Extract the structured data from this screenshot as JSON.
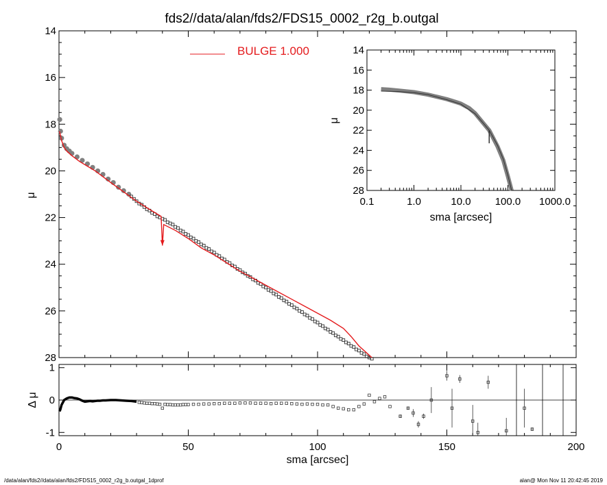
{
  "footer": {
    "left": "/data/alan/fds2//data/alan/fds2/FDS15_0002_r2g_b.outgal_1dprof",
    "right": "alan@  Mon Nov 11 20:42:45 2019"
  },
  "colors": {
    "model": "#e41a1c",
    "data": "#808080",
    "axis": "#000000"
  },
  "chart_data": [
    {
      "id": "main",
      "type": "scatter",
      "title": "fds2//data/alan/fds2/FDS15_0002_r2g_b.outgal",
      "xlabel": "",
      "ylabel": "μ",
      "xlim": [
        0,
        200
      ],
      "ylim": [
        28,
        14
      ],
      "y_inverted": true,
      "yticks": [
        14,
        16,
        18,
        20,
        22,
        24,
        26,
        28
      ],
      "legend": {
        "label": "BULGE  1.000",
        "placement": "top-center"
      },
      "series": [
        {
          "name": "BULGE  1.000",
          "style": "line",
          "x": [
            0.2,
            0.5,
            1,
            2,
            3,
            5,
            8,
            11,
            14,
            17,
            20,
            25,
            30,
            35,
            39.5,
            40,
            40.5,
            45,
            50,
            55,
            60,
            65,
            70,
            75,
            80,
            85,
            90,
            95,
            100,
            105,
            110,
            113,
            116,
            119,
            121
          ],
          "y": [
            18.3,
            18.45,
            18.7,
            19.0,
            19.15,
            19.35,
            19.6,
            19.8,
            20.0,
            20.25,
            20.5,
            20.9,
            21.3,
            21.65,
            21.95,
            23.2,
            22.3,
            22.55,
            22.9,
            23.3,
            23.6,
            23.95,
            24.3,
            24.6,
            24.9,
            25.2,
            25.5,
            25.8,
            26.1,
            26.4,
            26.75,
            27.1,
            27.5,
            27.8,
            28.0
          ]
        },
        {
          "name": "",
          "style": "squares",
          "x": [
            0.3,
            0.6,
            1,
            2,
            3,
            4,
            5,
            7,
            9,
            11,
            13,
            15,
            17,
            19,
            21,
            23,
            25,
            27,
            28,
            29,
            30,
            31,
            32,
            33,
            34,
            35,
            36,
            37,
            38,
            39,
            40,
            41,
            42,
            43,
            44,
            45,
            46,
            47,
            48,
            49,
            50,
            51,
            52,
            53,
            54,
            55,
            56,
            57,
            58,
            59,
            60,
            61,
            62,
            63,
            64,
            65,
            66,
            67,
            68,
            69,
            70,
            71,
            72,
            73,
            74,
            75,
            76,
            77,
            78,
            79,
            80,
            81,
            82,
            83,
            84,
            85,
            86,
            87,
            88,
            89,
            90,
            91,
            92,
            93,
            94,
            95,
            96,
            97,
            98,
            99,
            100,
            101,
            102,
            103,
            104,
            105,
            106,
            107,
            108,
            109,
            110,
            111,
            112,
            113,
            114,
            115,
            116,
            117,
            118,
            119,
            120,
            121
          ],
          "y": [
            17.8,
            18.3,
            18.6,
            18.9,
            19.05,
            19.15,
            19.25,
            19.4,
            19.55,
            19.7,
            19.85,
            20.0,
            20.15,
            20.35,
            20.5,
            20.7,
            20.85,
            21.0,
            21.1,
            21.2,
            21.3,
            21.4,
            21.45,
            21.55,
            21.65,
            21.7,
            21.8,
            21.85,
            21.95,
            22.0,
            22.05,
            22.1,
            22.2,
            22.25,
            22.3,
            22.4,
            22.45,
            22.55,
            22.6,
            22.7,
            22.75,
            22.85,
            22.9,
            23.0,
            23.05,
            23.15,
            23.2,
            23.3,
            23.35,
            23.45,
            23.5,
            23.6,
            23.65,
            23.75,
            23.8,
            23.9,
            23.95,
            24.05,
            24.1,
            24.2,
            24.25,
            24.35,
            24.4,
            24.5,
            24.55,
            24.65,
            24.7,
            24.8,
            24.85,
            24.95,
            25.0,
            25.1,
            25.15,
            25.25,
            25.3,
            25.4,
            25.45,
            25.55,
            25.6,
            25.7,
            25.75,
            25.85,
            25.9,
            26.0,
            26.05,
            26.15,
            26.2,
            26.3,
            26.35,
            26.45,
            26.5,
            26.6,
            26.65,
            26.75,
            26.8,
            26.9,
            26.95,
            27.05,
            27.1,
            27.2,
            27.25,
            27.35,
            27.4,
            27.5,
            27.55,
            27.65,
            27.7,
            27.8,
            27.85,
            27.95,
            28.0,
            28.05
          ]
        }
      ]
    },
    {
      "id": "inset",
      "type": "scatter",
      "xlabel": "sma [arcsec]",
      "ylabel": "μ",
      "x_scale": "log",
      "xlim": [
        0.1,
        1000
      ],
      "ylim": [
        28,
        14
      ],
      "y_inverted": true,
      "xticks": [
        "0.1",
        "1.0",
        "10.0",
        "100.0",
        "1000.0"
      ],
      "yticks": [
        14,
        16,
        18,
        20,
        22,
        24,
        26,
        28
      ],
      "series": [
        {
          "name": "",
          "style": "thick-line",
          "x": [
            0.2,
            0.3,
            0.5,
            1,
            2,
            3,
            5,
            8,
            10,
            15,
            20,
            30,
            40,
            60,
            80,
            100,
            120
          ],
          "y": [
            17.9,
            17.95,
            18.05,
            18.2,
            18.45,
            18.65,
            18.9,
            19.2,
            19.35,
            19.8,
            20.3,
            21.3,
            22.0,
            23.6,
            25.0,
            26.6,
            28.0
          ]
        },
        {
          "name": "",
          "style": "thin-line",
          "x": [
            0.2,
            0.5,
            1,
            2,
            5,
            10,
            20,
            30,
            40,
            60,
            80,
            100,
            120
          ],
          "y": [
            18.1,
            18.15,
            18.25,
            18.45,
            18.95,
            19.4,
            20.35,
            21.3,
            22.0,
            23.5,
            24.9,
            26.5,
            28.0
          ]
        }
      ]
    },
    {
      "id": "residual",
      "type": "scatter",
      "xlabel": "sma [arcsec]",
      "ylabel": "Δ μ",
      "xlim": [
        0,
        200
      ],
      "ylim": [
        -1.1,
        1.1
      ],
      "xticks": [
        0,
        50,
        100,
        150,
        200
      ],
      "yticks": [
        -1,
        0,
        1
      ],
      "series": [
        {
          "name": "",
          "style": "thick-line",
          "x": [
            0.2,
            0.5,
            1,
            2,
            3,
            4,
            5,
            6,
            7,
            8,
            9,
            10,
            11,
            12,
            13,
            14,
            15,
            16,
            17,
            18,
            20,
            22,
            24,
            26,
            28,
            30
          ],
          "y": [
            -0.35,
            -0.3,
            -0.15,
            0.0,
            0.05,
            0.08,
            0.08,
            0.06,
            0.05,
            0.02,
            -0.02,
            -0.05,
            -0.04,
            -0.03,
            -0.04,
            -0.03,
            -0.02,
            -0.02,
            -0.01,
            -0.01,
            0.0,
            0.0,
            -0.01,
            -0.02,
            -0.03,
            -0.05
          ]
        },
        {
          "name": "",
          "style": "squares",
          "x": [
            31,
            32,
            33,
            34,
            35,
            36,
            37,
            38,
            39,
            40,
            41,
            42,
            43,
            44,
            45,
            46,
            47,
            48,
            49,
            50,
            52,
            54,
            56,
            58,
            60,
            62,
            64,
            66,
            68,
            70,
            72,
            74,
            76,
            78,
            80,
            82,
            84,
            86,
            88,
            90,
            92,
            94,
            96,
            98,
            100,
            102,
            104,
            106,
            108,
            110,
            112,
            114,
            116,
            118,
            120,
            122,
            124,
            126,
            128
          ],
          "y": [
            -0.07,
            -0.08,
            -0.09,
            -0.1,
            -0.1,
            -0.11,
            -0.11,
            -0.12,
            -0.13,
            -0.25,
            -0.13,
            -0.14,
            -0.14,
            -0.15,
            -0.15,
            -0.15,
            -0.15,
            -0.14,
            -0.14,
            -0.14,
            -0.13,
            -0.13,
            -0.12,
            -0.12,
            -0.11,
            -0.11,
            -0.1,
            -0.1,
            -0.1,
            -0.09,
            -0.09,
            -0.09,
            -0.1,
            -0.1,
            -0.1,
            -0.11,
            -0.1,
            -0.1,
            -0.1,
            -0.11,
            -0.12,
            -0.13,
            -0.12,
            -0.13,
            -0.13,
            -0.15,
            -0.15,
            -0.2,
            -0.25,
            -0.27,
            -0.3,
            -0.3,
            -0.2,
            -0.12,
            0.15,
            -0.05,
            0.05,
            0.1,
            -0.2
          ]
        },
        {
          "name": "",
          "style": "errorbars",
          "x": [
            132,
            135,
            137,
            139,
            141,
            144,
            150,
            152,
            155,
            160,
            162,
            166,
            173,
            180,
            183
          ],
          "y": [
            -0.5,
            -0.25,
            -0.4,
            -0.75,
            -0.5,
            0.0,
            0.75,
            -0.25,
            0.65,
            -0.65,
            -1.0,
            0.55,
            -0.95,
            -0.25,
            -0.9
          ],
          "err": [
            0.05,
            0.05,
            0.12,
            0.1,
            0.08,
            0.4,
            0.15,
            0.6,
            0.12,
            0.5,
            0.3,
            0.2,
            0.4,
            0.6,
            0.05
          ]
        }
      ]
    }
  ]
}
